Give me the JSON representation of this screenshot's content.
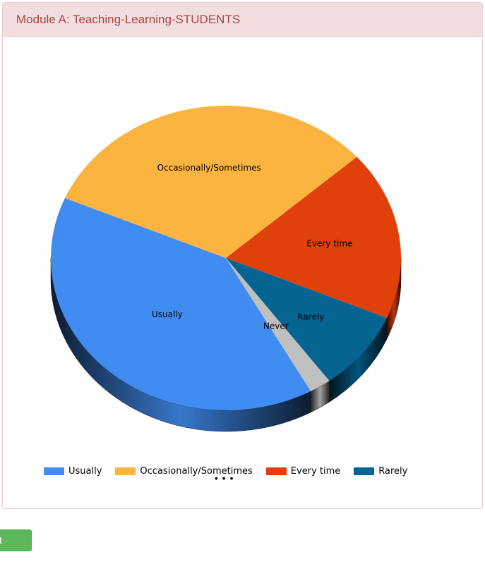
{
  "panel": {
    "title": "Module A: Teaching-Learning-STUDENTS"
  },
  "chart_data": {
    "type": "pie",
    "title": "",
    "slices": [
      {
        "label": "Usually",
        "value": 39.5,
        "color": "#418cf0"
      },
      {
        "label": "Occasionally/Sometimes",
        "value": 32.0,
        "color": "#fcb441"
      },
      {
        "label": "Every time",
        "value": 18.0,
        "color": "#e0400a"
      },
      {
        "label": "Rarely",
        "value": 8.5,
        "color": "#056492"
      },
      {
        "label": "Never",
        "value": 2.0,
        "color": "#bfbfbf"
      }
    ],
    "legend": {
      "placement": "bottom",
      "entries": [
        "Usually",
        "Occasionally/Sometimes",
        "Every time",
        "Rarely"
      ],
      "more_indicator": "• • •"
    },
    "style": "3d"
  },
  "submit": {
    "label": "t"
  }
}
